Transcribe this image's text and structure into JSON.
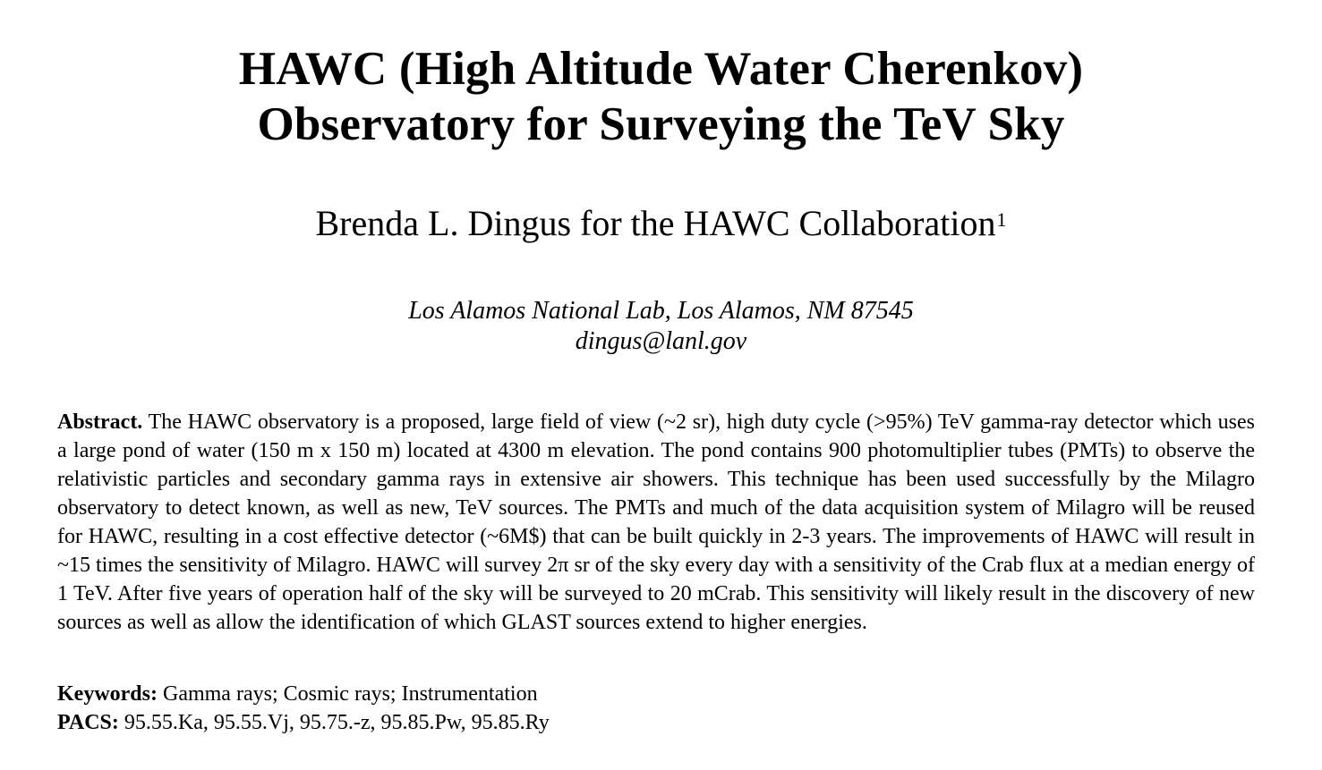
{
  "title": {
    "line1": "HAWC (High Altitude Water Cherenkov)",
    "line2": "Observatory for Surveying the TeV Sky"
  },
  "authors": {
    "text": "Brenda L. Dingus for the HAWC Collaboration",
    "footnote_mark": "1"
  },
  "affiliation": {
    "institution": "Los Alamos National Lab, Los Alamos, NM 87545",
    "email": "dingus@lanl.gov"
  },
  "abstract": {
    "label": "Abstract.",
    "body": "The HAWC observatory is a proposed, large field of view (~2 sr), high duty cycle (>95%) TeV gamma-ray detector which uses a large pond of water (150 m x 150 m) located at 4300 m elevation. The pond contains 900 photomultiplier tubes (PMTs) to observe the relativistic particles and secondary gamma rays in extensive air showers. This technique has been used successfully by the Milagro observatory to detect known, as well as new, TeV sources. The PMTs and much of the data acquisition system of Milagro will be reused for HAWC, resulting in a cost effective detector (~6M$) that can be built quickly in 2-3 years. The improvements of HAWC will result in ~15 times the sensitivity of Milagro. HAWC will survey 2π sr of the sky every day with a sensitivity of the Crab flux at a median energy of 1 TeV. After five years of operation half of the sky will be surveyed to 20 mCrab. This sensitivity will likely result in the discovery of new sources as well as allow the identification of which GLAST sources extend to higher energies."
  },
  "keywords": {
    "label": "Keywords:",
    "value": "Gamma rays; Cosmic rays; Instrumentation"
  },
  "pacs": {
    "label": "PACS:",
    "value": "95.55.Ka, 95.55.Vj, 95.75.-z, 95.85.Pw, 95.85.Ry"
  }
}
